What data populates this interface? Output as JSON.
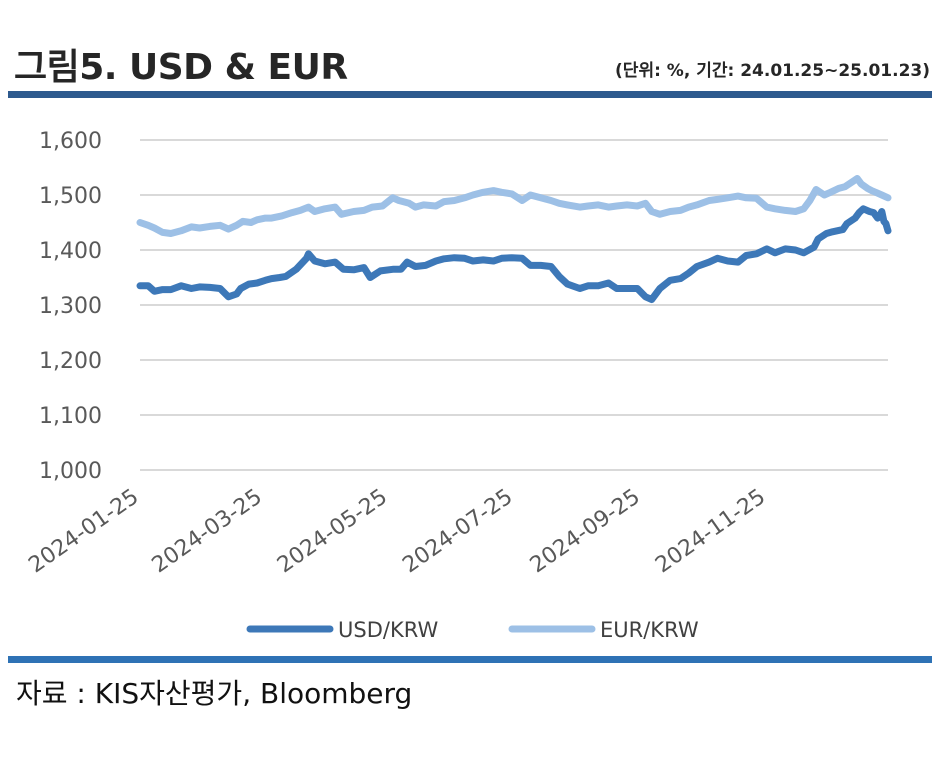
{
  "header": {
    "title": "그림5. USD & EUR",
    "subtitle": "(단위: %, 기간: 24.01.25~25.01.23)"
  },
  "footer": {
    "source": "자료 : KIS자산평가, Bloomberg"
  },
  "colors": {
    "usd": "#3d78b8",
    "eur": "#9dc0e6",
    "grid": "#d9d9d9",
    "rule": "#2e5a8e"
  },
  "chart_data": {
    "type": "line",
    "title": "",
    "xlabel": "",
    "ylabel": "",
    "ylim": [
      1000,
      1600
    ],
    "y_ticks": [
      "1,000",
      "1,100",
      "1,200",
      "1,300",
      "1,400",
      "1,500",
      "1,600"
    ],
    "x_range": [
      "2024-01-25",
      "2025-01-23"
    ],
    "x_ticks": [
      "2024-01-25",
      "2024-03-25",
      "2024-05-25",
      "2024-07-25",
      "2024-09-25",
      "2024-11-25"
    ],
    "grid": true,
    "legend_position": "bottom",
    "series": [
      {
        "name": "USD/KRW",
        "points": [
          [
            "2024-01-25",
            1335
          ],
          [
            "2024-01-29",
            1335
          ],
          [
            "2024-02-01",
            1325
          ],
          [
            "2024-02-05",
            1328
          ],
          [
            "2024-02-09",
            1328
          ],
          [
            "2024-02-14",
            1335
          ],
          [
            "2024-02-19",
            1330
          ],
          [
            "2024-02-23",
            1333
          ],
          [
            "2024-02-28",
            1332
          ],
          [
            "2024-03-04",
            1330
          ],
          [
            "2024-03-08",
            1315
          ],
          [
            "2024-03-12",
            1320
          ],
          [
            "2024-03-14",
            1330
          ],
          [
            "2024-03-18",
            1338
          ],
          [
            "2024-03-22",
            1340
          ],
          [
            "2024-03-26",
            1345
          ],
          [
            "2024-03-29",
            1348
          ],
          [
            "2024-04-02",
            1350
          ],
          [
            "2024-04-05",
            1352
          ],
          [
            "2024-04-10",
            1365
          ],
          [
            "2024-04-15",
            1385
          ],
          [
            "2024-04-16",
            1393
          ],
          [
            "2024-04-19",
            1380
          ],
          [
            "2024-04-24",
            1375
          ],
          [
            "2024-04-29",
            1378
          ],
          [
            "2024-05-03",
            1365
          ],
          [
            "2024-05-08",
            1364
          ],
          [
            "2024-05-13",
            1368
          ],
          [
            "2024-05-16",
            1350
          ],
          [
            "2024-05-21",
            1362
          ],
          [
            "2024-05-27",
            1365
          ],
          [
            "2024-05-31",
            1365
          ],
          [
            "2024-06-03",
            1378
          ],
          [
            "2024-06-07",
            1370
          ],
          [
            "2024-06-12",
            1372
          ],
          [
            "2024-06-17",
            1380
          ],
          [
            "2024-06-21",
            1384
          ],
          [
            "2024-06-26",
            1386
          ],
          [
            "2024-07-01",
            1385
          ],
          [
            "2024-07-05",
            1380
          ],
          [
            "2024-07-10",
            1382
          ],
          [
            "2024-07-15",
            1380
          ],
          [
            "2024-07-19",
            1385
          ],
          [
            "2024-07-24",
            1386
          ],
          [
            "2024-07-29",
            1385
          ],
          [
            "2024-08-02",
            1372
          ],
          [
            "2024-08-07",
            1372
          ],
          [
            "2024-08-12",
            1370
          ],
          [
            "2024-08-16",
            1352
          ],
          [
            "2024-08-20",
            1338
          ],
          [
            "2024-08-26",
            1330
          ],
          [
            "2024-08-30",
            1335
          ],
          [
            "2024-09-04",
            1335
          ],
          [
            "2024-09-09",
            1340
          ],
          [
            "2024-09-13",
            1330
          ],
          [
            "2024-09-18",
            1330
          ],
          [
            "2024-09-23",
            1330
          ],
          [
            "2024-09-27",
            1315
          ],
          [
            "2024-09-30",
            1310
          ],
          [
            "2024-10-04",
            1330
          ],
          [
            "2024-10-09",
            1345
          ],
          [
            "2024-10-14",
            1348
          ],
          [
            "2024-10-18",
            1358
          ],
          [
            "2024-10-22",
            1370
          ],
          [
            "2024-10-28",
            1378
          ],
          [
            "2024-11-01",
            1385
          ],
          [
            "2024-11-06",
            1380
          ],
          [
            "2024-11-11",
            1378
          ],
          [
            "2024-11-15",
            1390
          ],
          [
            "2024-11-20",
            1393
          ],
          [
            "2024-11-25",
            1402
          ],
          [
            "2024-11-29",
            1395
          ],
          [
            "2024-12-04",
            1402
          ],
          [
            "2024-12-09",
            1400
          ],
          [
            "2024-12-13",
            1395
          ],
          [
            "2024-12-18",
            1405
          ],
          [
            "2024-12-20",
            1420
          ],
          [
            "2024-12-24",
            1430
          ],
          [
            "2024-12-27",
            1433
          ],
          [
            "2025-01-01",
            1437
          ],
          [
            "2025-01-03",
            1448
          ],
          [
            "2025-01-07",
            1458
          ],
          [
            "2025-01-09",
            1468
          ],
          [
            "2025-01-11",
            1475
          ],
          [
            "2025-01-14",
            1470
          ],
          [
            "2025-01-16",
            1468
          ],
          [
            "2025-01-18",
            1458
          ],
          [
            "2025-01-19",
            1462
          ],
          [
            "2025-01-20",
            1470
          ],
          [
            "2025-01-21",
            1452
          ],
          [
            "2025-01-22",
            1448
          ],
          [
            "2025-01-23",
            1435
          ]
        ]
      },
      {
        "name": "EUR/KRW",
        "points": [
          [
            "2024-01-25",
            1450
          ],
          [
            "2024-01-29",
            1445
          ],
          [
            "2024-02-01",
            1440
          ],
          [
            "2024-02-05",
            1432
          ],
          [
            "2024-02-09",
            1430
          ],
          [
            "2024-02-14",
            1435
          ],
          [
            "2024-02-19",
            1442
          ],
          [
            "2024-02-23",
            1440
          ],
          [
            "2024-02-28",
            1443
          ],
          [
            "2024-03-04",
            1445
          ],
          [
            "2024-03-08",
            1438
          ],
          [
            "2024-03-12",
            1445
          ],
          [
            "2024-03-15",
            1452
          ],
          [
            "2024-03-19",
            1450
          ],
          [
            "2024-03-22",
            1455
          ],
          [
            "2024-03-26",
            1458
          ],
          [
            "2024-03-29",
            1458
          ],
          [
            "2024-04-03",
            1462
          ],
          [
            "2024-04-08",
            1468
          ],
          [
            "2024-04-12",
            1472
          ],
          [
            "2024-04-16",
            1478
          ],
          [
            "2024-04-19",
            1470
          ],
          [
            "2024-04-24",
            1475
          ],
          [
            "2024-04-29",
            1478
          ],
          [
            "2024-05-02",
            1465
          ],
          [
            "2024-05-08",
            1470
          ],
          [
            "2024-05-13",
            1472
          ],
          [
            "2024-05-17",
            1478
          ],
          [
            "2024-05-22",
            1480
          ],
          [
            "2024-05-27",
            1495
          ],
          [
            "2024-05-30",
            1490
          ],
          [
            "2024-06-04",
            1485
          ],
          [
            "2024-06-07",
            1478
          ],
          [
            "2024-06-11",
            1482
          ],
          [
            "2024-06-17",
            1480
          ],
          [
            "2024-06-21",
            1488
          ],
          [
            "2024-06-26",
            1490
          ],
          [
            "2024-07-01",
            1495
          ],
          [
            "2024-07-05",
            1500
          ],
          [
            "2024-07-10",
            1505
          ],
          [
            "2024-07-15",
            1508
          ],
          [
            "2024-07-19",
            1505
          ],
          [
            "2024-07-24",
            1502
          ],
          [
            "2024-07-29",
            1490
          ],
          [
            "2024-08-02",
            1500
          ],
          [
            "2024-08-07",
            1495
          ],
          [
            "2024-08-12",
            1490
          ],
          [
            "2024-08-16",
            1485
          ],
          [
            "2024-08-20",
            1482
          ],
          [
            "2024-08-26",
            1478
          ],
          [
            "2024-08-30",
            1480
          ],
          [
            "2024-09-04",
            1482
          ],
          [
            "2024-09-09",
            1478
          ],
          [
            "2024-09-13",
            1480
          ],
          [
            "2024-09-18",
            1482
          ],
          [
            "2024-09-23",
            1480
          ],
          [
            "2024-09-27",
            1485
          ],
          [
            "2024-09-30",
            1470
          ],
          [
            "2024-10-04",
            1465
          ],
          [
            "2024-10-09",
            1470
          ],
          [
            "2024-10-14",
            1472
          ],
          [
            "2024-10-18",
            1478
          ],
          [
            "2024-10-22",
            1482
          ],
          [
            "2024-10-28",
            1490
          ],
          [
            "2024-11-01",
            1492
          ],
          [
            "2024-11-06",
            1495
          ],
          [
            "2024-11-11",
            1498
          ],
          [
            "2024-11-15",
            1495
          ],
          [
            "2024-11-20",
            1494
          ],
          [
            "2024-11-25",
            1478
          ],
          [
            "2024-11-29",
            1475
          ],
          [
            "2024-12-04",
            1472
          ],
          [
            "2024-12-09",
            1470
          ],
          [
            "2024-12-13",
            1475
          ],
          [
            "2024-12-16",
            1490
          ],
          [
            "2024-12-19",
            1510
          ],
          [
            "2024-12-23",
            1500
          ],
          [
            "2024-12-26",
            1505
          ],
          [
            "2024-12-30",
            1512
          ],
          [
            "2025-01-02",
            1515
          ],
          [
            "2025-01-06",
            1525
          ],
          [
            "2025-01-08",
            1530
          ],
          [
            "2025-01-10",
            1520
          ],
          [
            "2025-01-13",
            1512
          ],
          [
            "2025-01-15",
            1508
          ],
          [
            "2025-01-17",
            1505
          ],
          [
            "2025-01-20",
            1500
          ],
          [
            "2025-01-23",
            1495
          ]
        ]
      }
    ]
  }
}
